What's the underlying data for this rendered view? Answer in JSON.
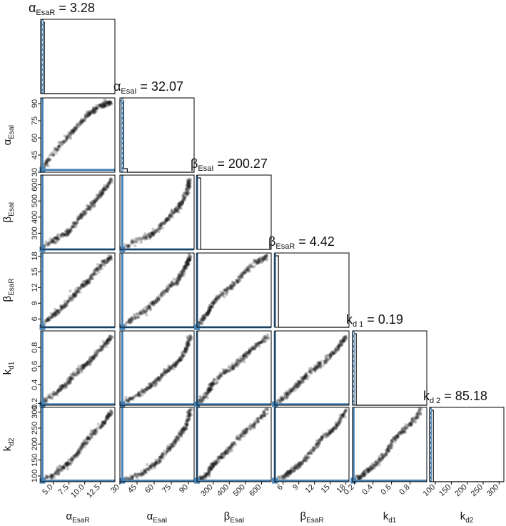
{
  "chart_data": {
    "type": "scatter",
    "kind": "corner-plot",
    "colors": {
      "points": "#1a1a1a",
      "truth": "#4682b4",
      "hist": "#111111",
      "frame": "#000000"
    },
    "parameters": [
      {
        "key": "aEsaR",
        "greek": "α",
        "sub": "EsaR",
        "title_value": "3.28",
        "range": [
          3.0,
          14.8
        ],
        "ticks": [
          5.0,
          7.5,
          10.0,
          12.5
        ],
        "tick_labels": [
          "5.0",
          "7.5",
          "10.0",
          "12.5"
        ]
      },
      {
        "key": "aEsaI",
        "greek": "α",
        "sub": "EsaI",
        "title_value": "32.07",
        "range": [
          30,
          95
        ],
        "ticks": [
          30,
          45,
          60,
          75,
          90
        ],
        "tick_labels": [
          "30",
          "45",
          "60",
          "75",
          "90"
        ]
      },
      {
        "key": "bEsaI",
        "greek": "β",
        "sub": "EsaI",
        "title_value": "200.27",
        "range": [
          200,
          660
        ],
        "ticks": [
          300,
          400,
          500,
          600
        ],
        "tick_labels": [
          "300",
          "400",
          "500",
          "600"
        ]
      },
      {
        "key": "bEsaR",
        "greek": "β",
        "sub": "EsaR",
        "title_value": "4.42",
        "range": [
          4.4,
          18.6
        ],
        "ticks": [
          6,
          9,
          12,
          15,
          18
        ],
        "tick_labels": [
          "6",
          "9",
          "12",
          "15",
          "18"
        ]
      },
      {
        "key": "kd1",
        "greek": "k",
        "sub": "d1",
        "title_sub": "d 1",
        "title_value": "0.19",
        "range": [
          0.18,
          0.98
        ],
        "ticks": [
          0.2,
          0.4,
          0.6,
          0.8
        ],
        "tick_labels": [
          "0.2",
          "0.4",
          "0.6",
          "0.8"
        ]
      },
      {
        "key": "kd2",
        "greek": "k",
        "sub": "d2",
        "title_sub": "d 2",
        "title_value": "85.18",
        "range": [
          82,
          315
        ],
        "ticks": [
          100,
          150,
          200,
          250,
          300
        ],
        "tick_labels": [
          "100",
          "150",
          "200",
          "250",
          "300"
        ]
      }
    ],
    "truth": [
      3.28,
      32.07,
      200.27,
      4.42,
      0.19,
      85.18
    ],
    "hist": [
      [
        100,
        0,
        0,
        0,
        0,
        0,
        0,
        0,
        0,
        0,
        0,
        0,
        0,
        0,
        0,
        0,
        0,
        0,
        0,
        0
      ],
      [
        100,
        5,
        0,
        0,
        0,
        0,
        0,
        0,
        0,
        0,
        0,
        0,
        0,
        0,
        0,
        0,
        0,
        0,
        0,
        0
      ],
      [
        100,
        0,
        0,
        0,
        0,
        0,
        0,
        0,
        0,
        0,
        0,
        0,
        0,
        0,
        0,
        0,
        0,
        0,
        0,
        0
      ],
      [
        100,
        0,
        0,
        0,
        0,
        0,
        0,
        0,
        0,
        0,
        0,
        0,
        0,
        0,
        0,
        0,
        0,
        0,
        0,
        0
      ],
      [
        100,
        0,
        0,
        0,
        0,
        0,
        0,
        0,
        0,
        0,
        0,
        0,
        0,
        0,
        0,
        0,
        0,
        0,
        0,
        0
      ],
      [
        100,
        0,
        0,
        0,
        0,
        0,
        0,
        0,
        0,
        0,
        0,
        0,
        0,
        0,
        0,
        0,
        0,
        0,
        0,
        0
      ]
    ],
    "chains": [
      [
        3.5,
        35,
        215,
        5.0,
        0.22,
        90
      ],
      [
        4.5,
        42,
        245,
        6.2,
        0.27,
        97
      ],
      [
        5.5,
        50,
        270,
        7.2,
        0.32,
        110
      ],
      [
        6.5,
        56,
        285,
        8.3,
        0.38,
        125
      ],
      [
        7.5,
        62,
        310,
        9.5,
        0.44,
        140
      ],
      [
        8.5,
        68,
        360,
        10.8,
        0.52,
        165
      ],
      [
        9.5,
        74,
        410,
        12.2,
        0.58,
        190
      ],
      [
        10.5,
        80,
        450,
        13.2,
        0.63,
        215
      ],
      [
        11.5,
        84,
        490,
        14.8,
        0.7,
        235
      ],
      [
        12.5,
        88,
        540,
        16.2,
        0.78,
        255
      ],
      [
        13.5,
        90,
        590,
        17.2,
        0.85,
        280
      ],
      [
        14.3,
        91,
        635,
        18.0,
        0.92,
        305
      ]
    ]
  }
}
